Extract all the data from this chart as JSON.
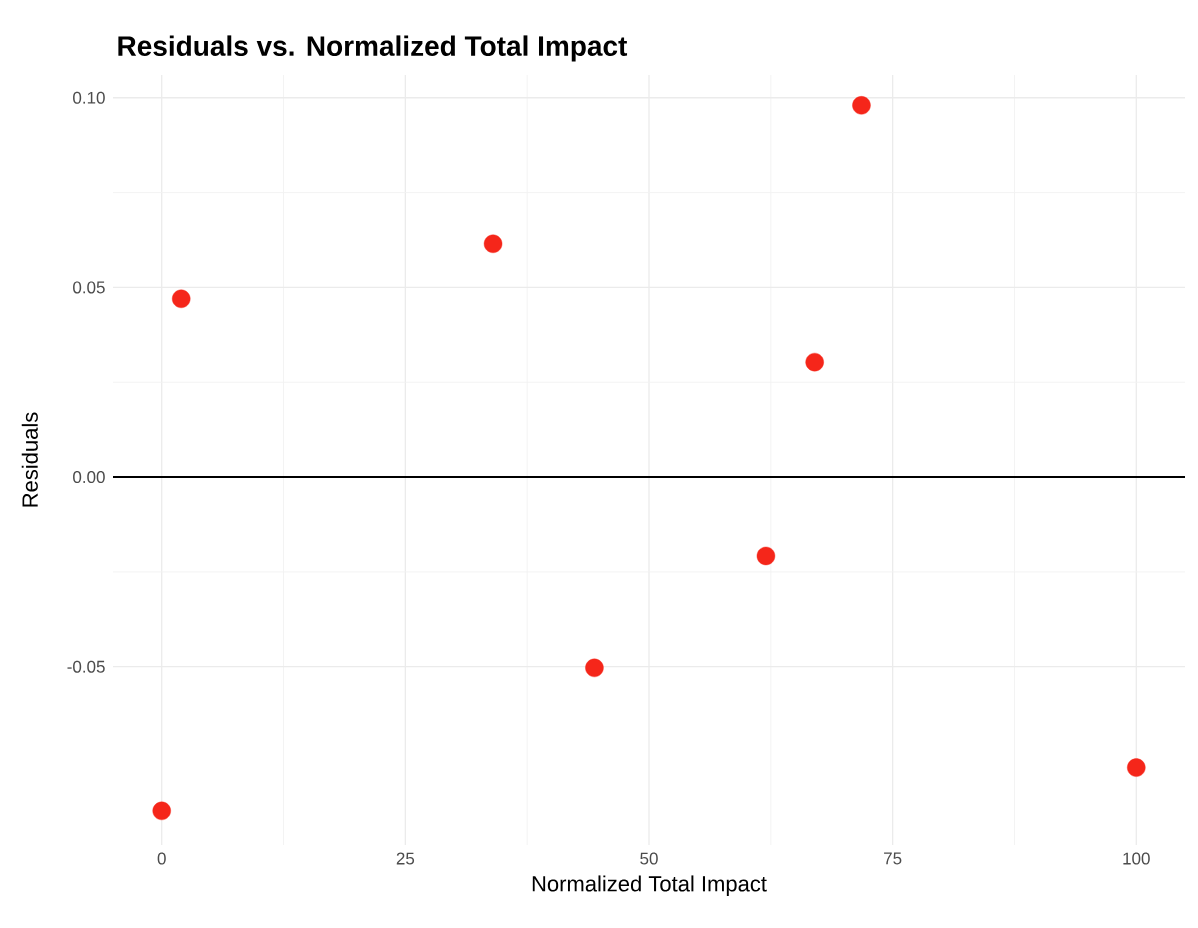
{
  "chart_data": {
    "type": "scatter",
    "title": "Residuals vs. Normalized Total Impact",
    "xlabel": "Normalized Total Impact",
    "ylabel": "Residuals",
    "x": [
      0,
      2,
      34,
      44.4,
      62,
      67,
      71.8,
      100
    ],
    "series": [
      {
        "color": "#f5261a",
        "values": [
          -0.088,
          0.047,
          0.0615,
          -0.0503,
          -0.0208,
          0.0303,
          0.098,
          -0.0766
        ]
      }
    ],
    "xlim": [
      -5,
      105
    ],
    "ylim": [
      -0.097,
      0.106
    ],
    "xticks": [
      0,
      25,
      50,
      75,
      100
    ],
    "yticks": [
      {
        "value": -0.05,
        "label": "-0.05"
      },
      {
        "value": 0,
        "label": "0.00"
      },
      {
        "value": 0.05,
        "label": "0.05"
      },
      {
        "value": 0.1,
        "label": "0.10"
      }
    ],
    "ref_lines": [
      {
        "axis": "y",
        "value": 0,
        "color": "#000000"
      }
    ],
    "grid": true,
    "marker": "circle"
  }
}
